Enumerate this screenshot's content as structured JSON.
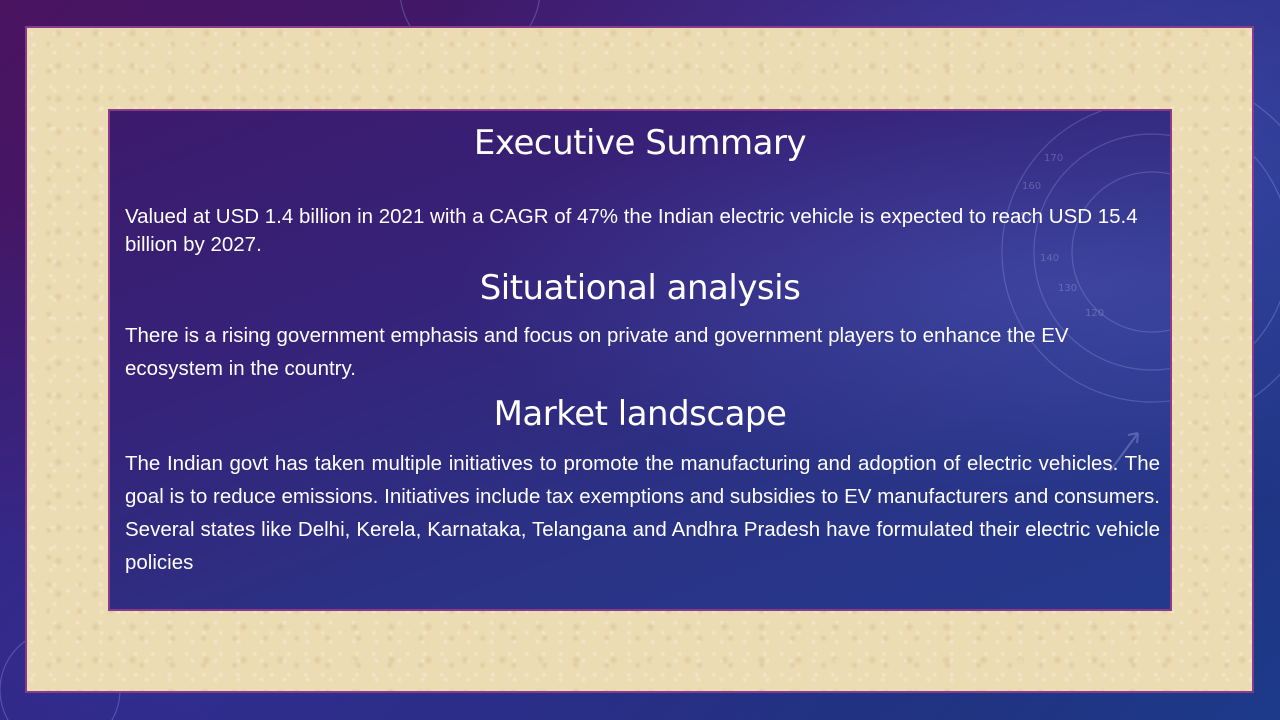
{
  "slide": {
    "sections": [
      {
        "heading": "Executive Summary",
        "body": "Valued at USD 1.4 billion in 2021 with a CAGR of 47% the Indian electric vehicle is expected to reach USD 15.4 billion by 2027."
      },
      {
        "heading": "Situational analysis",
        "body": "There is a rising government emphasis and focus on private and government players to enhance the EV ecosystem in the country."
      },
      {
        "heading": "Market landscape",
        "body": "The Indian govt has taken multiple initiatives to promote the manufacturing and adoption of electric vehicles.  The goal is to reduce emissions. Initiatives include tax exemptions and subsidies to EV manufacturers and consumers. Several states like Delhi, Kerela, Karnataka, Telangana and Andhra Pradesh have formulated their electric vehicle policies"
      }
    ],
    "decor_dial_labels": [
      "170",
      "160",
      "150",
      "140",
      "130",
      "120"
    ]
  },
  "colors": {
    "text": "#ffffff",
    "border": "#8a3a8a",
    "parchment": "#ecdcb4",
    "background_purple": "#4a1460",
    "background_blue": "#1d3a8a"
  }
}
